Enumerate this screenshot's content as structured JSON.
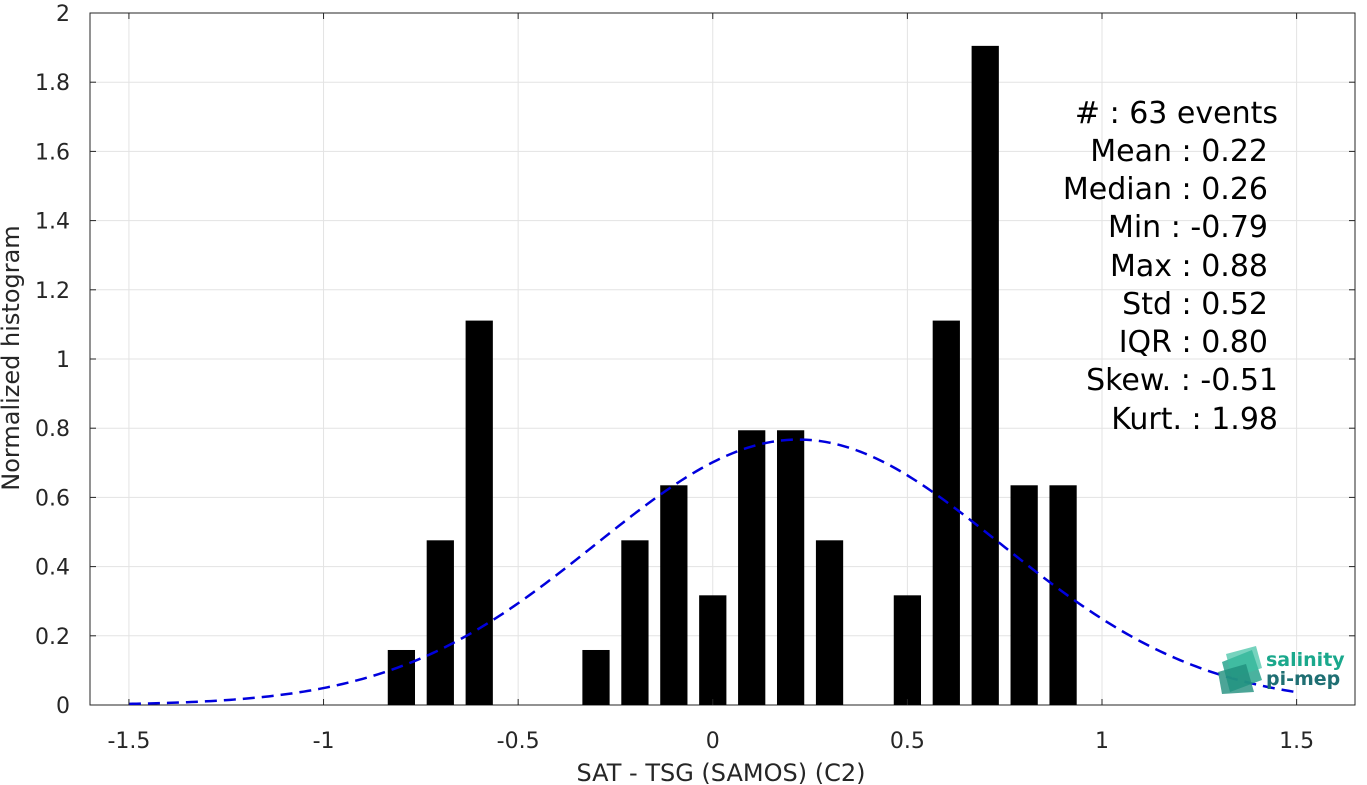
{
  "chart_data": {
    "type": "bar",
    "xlabel": "SAT - TSG (SAMOS) (C2)",
    "ylabel": "Normalized histogram",
    "xlim": [
      -1.6,
      1.65
    ],
    "ylim": [
      0,
      2
    ],
    "xticks": [
      -1.5,
      -1,
      -0.5,
      0,
      0.5,
      1,
      1.5
    ],
    "xtick_labels": [
      "-1.5",
      "-1",
      "-0.5",
      "0",
      "0.5",
      "1",
      "1.5"
    ],
    "yticks": [
      0,
      0.2,
      0.4,
      0.6,
      0.8,
      1,
      1.2,
      1.4,
      1.6,
      1.8,
      2
    ],
    "ytick_labels": [
      "0",
      "0.2",
      "0.4",
      "0.6",
      "0.8",
      "1",
      "1.2",
      "1.4",
      "1.6",
      "1.8",
      "2"
    ],
    "grid": true,
    "bar_width": 0.07,
    "bars": [
      {
        "x": -0.8,
        "y": 0.159
      },
      {
        "x": -0.7,
        "y": 0.476
      },
      {
        "x": -0.6,
        "y": 1.111
      },
      {
        "x": -0.3,
        "y": 0.159
      },
      {
        "x": -0.2,
        "y": 0.476
      },
      {
        "x": -0.1,
        "y": 0.635
      },
      {
        "x": 0.0,
        "y": 0.317
      },
      {
        "x": 0.1,
        "y": 0.794
      },
      {
        "x": 0.2,
        "y": 0.794
      },
      {
        "x": 0.3,
        "y": 0.476
      },
      {
        "x": 0.5,
        "y": 0.317
      },
      {
        "x": 0.6,
        "y": 1.111
      },
      {
        "x": 0.7,
        "y": 1.905
      },
      {
        "x": 0.8,
        "y": 0.635
      },
      {
        "x": 0.9,
        "y": 0.635
      }
    ],
    "fit": {
      "type": "normal",
      "mean": 0.22,
      "std": 0.52,
      "x_range": [
        -1.5,
        1.5
      ],
      "color": "#0000dd",
      "style": "dashed"
    },
    "bar_color": "#000000"
  },
  "stats": {
    "events": "#  : 63 events",
    "mean": "Mean : 0.22",
    "median": "Median : 0.26",
    "min": "Min : -0.79",
    "max": "Max : 0.88",
    "std": "Std : 0.52",
    "iqr": "IQR : 0.80",
    "skew": "Skew. : -0.51",
    "kurt": "Kurt. : 1.98"
  },
  "logo": {
    "line1": "salinity",
    "line2": "pi-mep",
    "color1": "#1aa88c",
    "color2": "#1f6f73"
  }
}
